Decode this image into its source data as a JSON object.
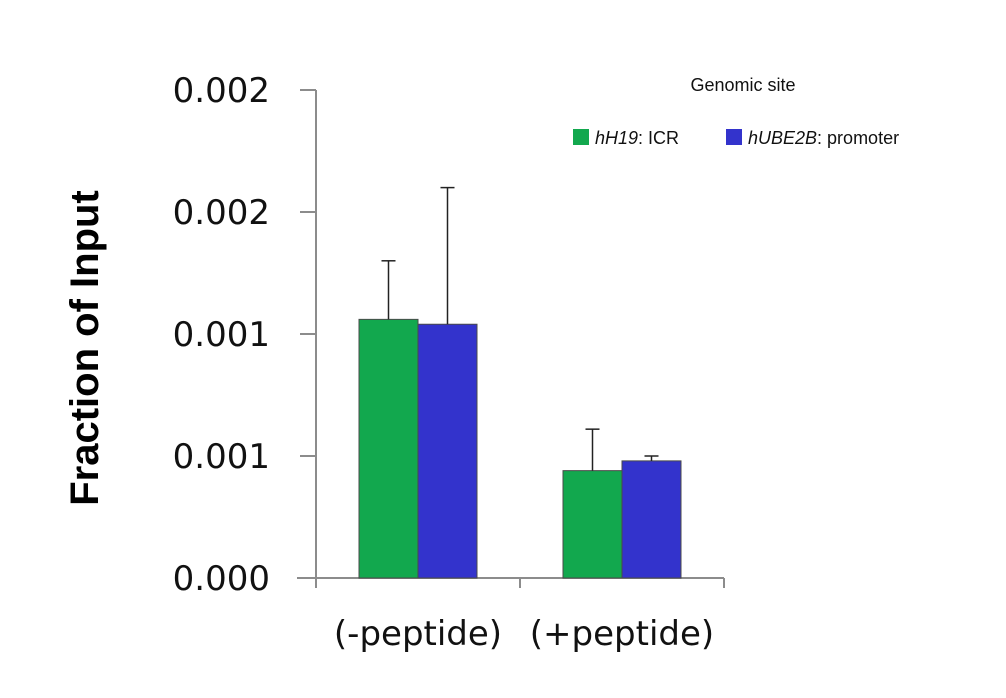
{
  "chart_data": {
    "type": "bar",
    "title": "",
    "xlabel": "",
    "ylabel": "Fraction  of  Input",
    "categories": [
      "(-peptide)",
      "(+peptide)"
    ],
    "y_tick_values": [
      0,
      0.0005,
      0.001,
      0.0015,
      0.002
    ],
    "y_tick_labels": [
      "0.000",
      "0.001",
      "0.001",
      "0.002",
      "0.002"
    ],
    "ylim": [
      0,
      0.002
    ],
    "grid": false,
    "legend_placement": "top-right",
    "legend": {
      "title": "Genomic site",
      "entries": [
        {
          "italic": "hH19",
          "rest": ": ICR"
        },
        {
          "italic": "hUBE2B",
          "rest": ": promoter"
        }
      ]
    },
    "series": [
      {
        "color": "#12a84e",
        "values": [
          0.00106,
          0.00044
        ],
        "error_upper": [
          0.0013,
          0.00061
        ]
      },
      {
        "color": "#3333cc",
        "values": [
          0.00104,
          0.00048
        ],
        "error_upper": [
          0.0016,
          0.0005
        ]
      }
    ]
  }
}
